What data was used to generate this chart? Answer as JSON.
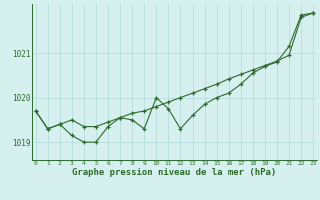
{
  "hours": [
    0,
    1,
    2,
    3,
    4,
    5,
    6,
    7,
    8,
    9,
    10,
    11,
    12,
    13,
    14,
    15,
    16,
    17,
    18,
    19,
    20,
    21,
    22,
    23
  ],
  "series1": [
    1019.7,
    1019.3,
    1019.4,
    1019.15,
    1019.0,
    1019.0,
    1019.35,
    1019.55,
    1019.5,
    1019.3,
    1020.0,
    1019.75,
    1019.3,
    1019.6,
    1019.85,
    1020.0,
    1020.1,
    1020.3,
    1020.55,
    1020.7,
    1020.8,
    1021.15,
    1021.85,
    1021.9
  ],
  "series2": [
    1019.7,
    1019.3,
    1019.4,
    1019.5,
    1019.35,
    1019.35,
    1019.45,
    1019.55,
    1019.65,
    1019.7,
    1019.8,
    1019.9,
    1020.0,
    1020.1,
    1020.2,
    1020.3,
    1020.42,
    1020.52,
    1020.62,
    1020.72,
    1020.82,
    1020.95,
    1021.8,
    1021.9
  ],
  "line_color": "#2d6a2d",
  "marker": "+",
  "bg_color": "#d6f0ef",
  "grid_color": "#b8dedd",
  "xlabel": "Graphe pression niveau de la mer (hPa)",
  "ylim": [
    1018.6,
    1022.1
  ],
  "yticks": [
    1019,
    1020,
    1021
  ],
  "xlim": [
    -0.3,
    23.3
  ]
}
